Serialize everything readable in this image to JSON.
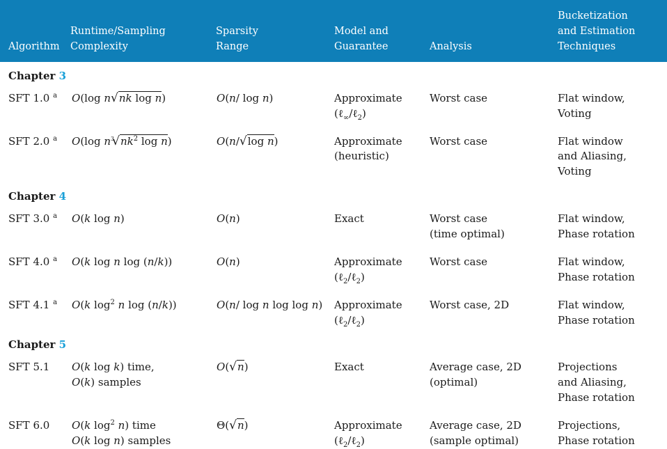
{
  "header": {
    "col1": "Algorithm",
    "col2_line1": "Runtime/Sampling",
    "col2_line2": "Complexity",
    "col3_line1": "Sparsity",
    "col3_line2": "Range",
    "col4_line1": "Model and",
    "col4_line2": "Guarantee",
    "col5": "Analysis",
    "col6_line1": "Bucketization",
    "col6_line2": "and Estimation",
    "col6_line3": "Techniques"
  },
  "chapters": [
    {
      "label": "Chapter",
      "number": "3"
    },
    {
      "label": "Chapter",
      "number": "4"
    },
    {
      "label": "Chapter",
      "number": "5"
    }
  ],
  "rows": [
    {
      "algorithm": "SFT 1.0",
      "note": "a",
      "model1": "Approximate",
      "model2": "(ℓ∞/ℓ2)",
      "analysis1": "Worst case",
      "analysis2": "",
      "tech1": "Flat window,",
      "tech2": "Voting",
      "tech3": ""
    },
    {
      "algorithm": "SFT 2.0",
      "note": "a",
      "model1": "Approximate",
      "model2": "(heuristic)",
      "analysis1": "Worst case",
      "analysis2": "",
      "tech1": "Flat window",
      "tech2": "and Aliasing,",
      "tech3": "Voting"
    },
    {
      "algorithm": "SFT 3.0",
      "note": "a",
      "model1": "Exact",
      "model2": "",
      "analysis1": "Worst case",
      "analysis2": "(time optimal)",
      "tech1": "Flat window,",
      "tech2": "Phase rotation",
      "tech3": ""
    },
    {
      "algorithm": "SFT 4.0",
      "note": "a",
      "model1": "Approximate",
      "model2": "(ℓ2/ℓ2)",
      "analysis1": "Worst case",
      "analysis2": "",
      "tech1": "Flat window,",
      "tech2": "Phase rotation",
      "tech3": ""
    },
    {
      "algorithm": "SFT 4.1",
      "note": "a",
      "model1": "Approximate",
      "model2": "(ℓ2/ℓ2)",
      "analysis1": "Worst case, 2D",
      "analysis2": "",
      "tech1": "Flat window,",
      "tech2": "Phase rotation",
      "tech3": ""
    },
    {
      "algorithm": "SFT 5.1",
      "note": "",
      "model1": "Exact",
      "model2": "",
      "analysis1": "Average case, 2D",
      "analysis2": "(optimal)",
      "tech1": "Projections",
      "tech2": "and Aliasing,",
      "tech3": "Phase rotation"
    },
    {
      "algorithm": "SFT 6.0",
      "note": "",
      "model1": "Approximate",
      "model2": "(ℓ2/ℓ2)",
      "analysis1": "Average case, 2D",
      "analysis2": "(sample optimal)",
      "tech1": "Projections,",
      "tech2": "Phase rotation",
      "tech3": ""
    }
  ],
  "math": {
    "r5_time_suffix": "time,",
    "r5_samples_suffix": "samples",
    "r6_time_suffix": "time",
    "r6_samples_suffix": "samples"
  }
}
